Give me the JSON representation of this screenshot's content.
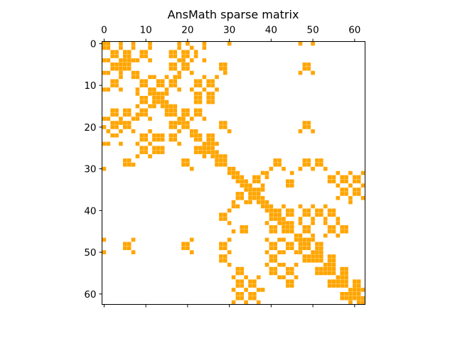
{
  "chart_data": {
    "type": "spy",
    "title": "AnsMath sparse matrix",
    "n": 63,
    "marker_color": "#ffa500",
    "x_ticks": [
      0,
      10,
      20,
      30,
      40,
      50,
      60
    ],
    "y_ticks": [
      0,
      10,
      20,
      30,
      40,
      50,
      60
    ],
    "xlim": [
      -0.5,
      62.5
    ],
    "ylim": [
      62.5,
      -0.5
    ],
    "x_axis_position": "top",
    "grid": false,
    "nonzeros": [
      [
        0,
        0
      ],
      [
        0,
        1
      ],
      [
        0,
        4
      ],
      [
        0,
        7
      ],
      [
        0,
        11
      ],
      [
        0,
        18
      ],
      [
        0,
        20
      ],
      [
        0,
        24
      ],
      [
        0,
        30
      ],
      [
        0,
        47
      ],
      [
        0,
        50
      ],
      [
        1,
        1
      ],
      [
        1,
        4
      ],
      [
        1,
        7
      ],
      [
        1,
        11
      ],
      [
        1,
        18
      ],
      [
        1,
        21
      ],
      [
        1,
        24
      ],
      [
        2,
        2
      ],
      [
        2,
        3
      ],
      [
        2,
        5
      ],
      [
        2,
        6
      ],
      [
        2,
        9
      ],
      [
        2,
        10
      ],
      [
        2,
        16
      ],
      [
        2,
        17
      ],
      [
        2,
        19
      ],
      [
        2,
        20
      ],
      [
        2,
        22
      ],
      [
        3,
        3
      ],
      [
        3,
        5
      ],
      [
        3,
        6
      ],
      [
        3,
        9
      ],
      [
        3,
        10
      ],
      [
        3,
        16
      ],
      [
        3,
        17
      ],
      [
        3,
        19
      ],
      [
        3,
        20
      ],
      [
        3,
        22
      ],
      [
        4,
        4
      ],
      [
        4,
        5
      ],
      [
        4,
        6
      ],
      [
        4,
        7
      ],
      [
        4,
        8
      ],
      [
        4,
        11
      ],
      [
        4,
        18
      ],
      [
        4,
        19
      ],
      [
        4,
        21
      ],
      [
        4,
        24
      ],
      [
        5,
        5
      ],
      [
        5,
        6
      ],
      [
        5,
        16
      ],
      [
        5,
        17
      ],
      [
        5,
        19
      ],
      [
        5,
        20
      ],
      [
        5,
        28
      ],
      [
        5,
        29
      ],
      [
        5,
        48
      ],
      [
        5,
        49
      ],
      [
        6,
        6
      ],
      [
        6,
        16
      ],
      [
        6,
        17
      ],
      [
        6,
        19
      ],
      [
        6,
        20
      ],
      [
        6,
        28
      ],
      [
        6,
        29
      ],
      [
        6,
        48
      ],
      [
        6,
        49
      ],
      [
        7,
        7
      ],
      [
        7,
        8
      ],
      [
        7,
        18
      ],
      [
        7,
        21
      ],
      [
        7,
        29
      ],
      [
        7,
        47
      ],
      [
        7,
        50
      ],
      [
        8,
        8
      ],
      [
        8,
        11
      ],
      [
        8,
        12
      ],
      [
        8,
        15
      ],
      [
        8,
        17
      ],
      [
        8,
        18
      ],
      [
        8,
        24
      ],
      [
        8,
        27
      ],
      [
        9,
        9
      ],
      [
        9,
        10
      ],
      [
        9,
        13
      ],
      [
        9,
        14
      ],
      [
        9,
        16
      ],
      [
        9,
        17
      ],
      [
        9,
        22
      ],
      [
        9,
        23
      ],
      [
        9,
        25
      ],
      [
        9,
        26
      ],
      [
        10,
        10
      ],
      [
        10,
        13
      ],
      [
        10,
        14
      ],
      [
        10,
        16
      ],
      [
        10,
        17
      ],
      [
        10,
        22
      ],
      [
        10,
        23
      ],
      [
        10,
        25
      ],
      [
        10,
        26
      ],
      [
        11,
        11
      ],
      [
        11,
        12
      ],
      [
        11,
        15
      ],
      [
        11,
        18
      ],
      [
        11,
        21
      ],
      [
        11,
        24
      ],
      [
        11,
        27
      ],
      [
        12,
        12
      ],
      [
        12,
        13
      ],
      [
        12,
        14
      ],
      [
        12,
        15
      ],
      [
        12,
        22
      ],
      [
        12,
        23
      ],
      [
        12,
        25
      ],
      [
        12,
        26
      ],
      [
        13,
        13
      ],
      [
        13,
        14
      ],
      [
        13,
        22
      ],
      [
        13,
        23
      ],
      [
        13,
        25
      ],
      [
        13,
        26
      ],
      [
        14,
        14
      ],
      [
        14,
        15
      ],
      [
        14,
        22
      ],
      [
        14,
        23
      ],
      [
        14,
        25
      ],
      [
        14,
        26
      ],
      [
        15,
        15
      ],
      [
        15,
        16
      ],
      [
        15,
        17
      ],
      [
        16,
        16
      ],
      [
        16,
        17
      ],
      [
        16,
        19
      ],
      [
        16,
        20
      ],
      [
        16,
        22
      ],
      [
        16,
        23
      ],
      [
        17,
        17
      ],
      [
        17,
        19
      ],
      [
        17,
        20
      ],
      [
        17,
        22
      ],
      [
        17,
        23
      ],
      [
        18,
        18
      ],
      [
        18,
        19
      ],
      [
        18,
        21
      ],
      [
        18,
        24
      ],
      [
        19,
        19
      ],
      [
        19,
        20
      ],
      [
        19,
        28
      ],
      [
        19,
        29
      ],
      [
        19,
        48
      ],
      [
        19,
        49
      ],
      [
        20,
        20
      ],
      [
        20,
        28
      ],
      [
        20,
        29
      ],
      [
        20,
        48
      ],
      [
        20,
        49
      ],
      [
        21,
        21
      ],
      [
        21,
        22
      ],
      [
        21,
        30
      ],
      [
        21,
        47
      ],
      [
        21,
        50
      ],
      [
        22,
        22
      ],
      [
        22,
        23
      ],
      [
        22,
        25
      ],
      [
        22,
        26
      ],
      [
        23,
        23
      ],
      [
        23,
        25
      ],
      [
        23,
        26
      ],
      [
        24,
        24
      ],
      [
        24,
        25
      ],
      [
        24,
        26
      ],
      [
        24,
        27
      ],
      [
        25,
        25
      ],
      [
        25,
        26
      ],
      [
        26,
        26
      ],
      [
        26,
        27
      ],
      [
        27,
        27
      ],
      [
        27,
        28
      ],
      [
        27,
        29
      ],
      [
        28,
        28
      ],
      [
        28,
        29
      ],
      [
        28,
        41
      ],
      [
        28,
        42
      ],
      [
        28,
        48
      ],
      [
        28,
        49
      ],
      [
        28,
        51
      ],
      [
        28,
        52
      ],
      [
        29,
        29
      ],
      [
        29,
        41
      ],
      [
        29,
        42
      ],
      [
        29,
        48
      ],
      [
        29,
        49
      ],
      [
        29,
        51
      ],
      [
        29,
        52
      ],
      [
        30,
        30
      ],
      [
        30,
        31
      ],
      [
        30,
        40
      ],
      [
        30,
        43
      ],
      [
        30,
        47
      ],
      [
        30,
        50
      ],
      [
        30,
        53
      ],
      [
        31,
        31
      ],
      [
        31,
        32
      ],
      [
        31,
        38
      ],
      [
        31,
        39
      ],
      [
        31,
        45
      ],
      [
        31,
        56
      ],
      [
        31,
        59
      ],
      [
        31,
        62
      ],
      [
        32,
        32
      ],
      [
        32,
        33
      ],
      [
        32,
        36
      ],
      [
        32,
        37
      ],
      [
        32,
        39
      ],
      [
        32,
        54
      ],
      [
        32,
        55
      ],
      [
        32,
        57
      ],
      [
        32,
        58
      ],
      [
        32,
        60
      ],
      [
        32,
        61
      ],
      [
        33,
        33
      ],
      [
        33,
        34
      ],
      [
        33,
        36
      ],
      [
        33,
        37
      ],
      [
        33,
        44
      ],
      [
        33,
        45
      ],
      [
        33,
        54
      ],
      [
        33,
        55
      ],
      [
        33,
        57
      ],
      [
        33,
        58
      ],
      [
        33,
        60
      ],
      [
        33,
        61
      ],
      [
        34,
        34
      ],
      [
        34,
        35
      ],
      [
        34,
        38
      ],
      [
        34,
        44
      ],
      [
        34,
        45
      ],
      [
        34,
        56
      ],
      [
        34,
        59
      ],
      [
        34,
        62
      ],
      [
        35,
        35
      ],
      [
        35,
        36
      ],
      [
        35,
        37
      ],
      [
        35,
        38
      ],
      [
        35,
        57
      ],
      [
        35,
        58
      ],
      [
        35,
        60
      ],
      [
        35,
        61
      ],
      [
        36,
        36
      ],
      [
        36,
        37
      ],
      [
        36,
        57
      ],
      [
        36,
        58
      ],
      [
        36,
        60
      ],
      [
        36,
        61
      ],
      [
        37,
        37
      ],
      [
        37,
        38
      ],
      [
        37,
        56
      ],
      [
        37,
        59
      ],
      [
        37,
        62
      ],
      [
        38,
        38
      ],
      [
        38,
        39
      ],
      [
        38,
        59
      ],
      [
        39,
        39
      ],
      [
        39,
        40
      ],
      [
        39,
        43
      ],
      [
        39,
        47
      ],
      [
        39,
        50
      ],
      [
        39,
        53
      ],
      [
        40,
        40
      ],
      [
        40,
        41
      ],
      [
        40,
        42
      ],
      [
        40,
        44
      ],
      [
        40,
        45
      ],
      [
        40,
        48
      ],
      [
        40,
        49
      ],
      [
        40,
        51
      ],
      [
        40,
        52
      ],
      [
        40,
        54
      ],
      [
        40,
        55
      ],
      [
        41,
        41
      ],
      [
        41,
        42
      ],
      [
        41,
        44
      ],
      [
        41,
        45
      ],
      [
        41,
        48
      ],
      [
        41,
        49
      ],
      [
        41,
        51
      ],
      [
        41,
        52
      ],
      [
        41,
        54
      ],
      [
        41,
        55
      ],
      [
        42,
        42
      ],
      [
        42,
        43
      ],
      [
        42,
        47
      ],
      [
        42,
        50
      ],
      [
        42,
        53
      ],
      [
        42,
        56
      ],
      [
        43,
        43
      ],
      [
        43,
        44
      ],
      [
        43,
        45
      ],
      [
        43,
        47
      ],
      [
        43,
        50
      ],
      [
        43,
        53
      ],
      [
        43,
        56
      ],
      [
        44,
        44
      ],
      [
        44,
        45
      ],
      [
        44,
        48
      ],
      [
        44,
        49
      ],
      [
        44,
        54
      ],
      [
        44,
        55
      ],
      [
        44,
        57
      ],
      [
        44,
        58
      ],
      [
        45,
        45
      ],
      [
        45,
        48
      ],
      [
        45,
        49
      ],
      [
        45,
        54
      ],
      [
        45,
        55
      ],
      [
        45,
        57
      ],
      [
        45,
        58
      ],
      [
        46,
        46
      ],
      [
        46,
        47
      ],
      [
        46,
        50
      ],
      [
        46,
        53
      ],
      [
        46,
        56
      ],
      [
        47,
        47
      ],
      [
        47,
        48
      ],
      [
        47,
        49
      ],
      [
        47,
        50
      ],
      [
        48,
        48
      ],
      [
        48,
        49
      ],
      [
        48,
        51
      ],
      [
        48,
        52
      ],
      [
        49,
        49
      ],
      [
        49,
        51
      ],
      [
        49,
        52
      ],
      [
        50,
        50
      ],
      [
        50,
        51
      ],
      [
        50,
        52
      ],
      [
        51,
        51
      ],
      [
        51,
        52
      ],
      [
        51,
        54
      ],
      [
        51,
        55
      ],
      [
        52,
        52
      ],
      [
        52,
        54
      ],
      [
        52,
        55
      ],
      [
        53,
        53
      ],
      [
        53,
        54
      ],
      [
        53,
        55
      ],
      [
        54,
        54
      ],
      [
        54,
        55
      ],
      [
        54,
        57
      ],
      [
        54,
        58
      ],
      [
        55,
        55
      ],
      [
        55,
        57
      ],
      [
        55,
        58
      ],
      [
        56,
        56
      ],
      [
        56,
        57
      ],
      [
        56,
        58
      ],
      [
        57,
        57
      ],
      [
        57,
        58
      ],
      [
        57,
        60
      ],
      [
        57,
        61
      ],
      [
        58,
        58
      ],
      [
        58,
        60
      ],
      [
        58,
        61
      ],
      [
        59,
        59
      ],
      [
        59,
        60
      ],
      [
        59,
        61
      ],
      [
        59,
        62
      ],
      [
        60,
        60
      ],
      [
        60,
        61
      ],
      [
        61,
        61
      ],
      [
        61,
        62
      ],
      [
        62,
        62
      ]
    ]
  }
}
